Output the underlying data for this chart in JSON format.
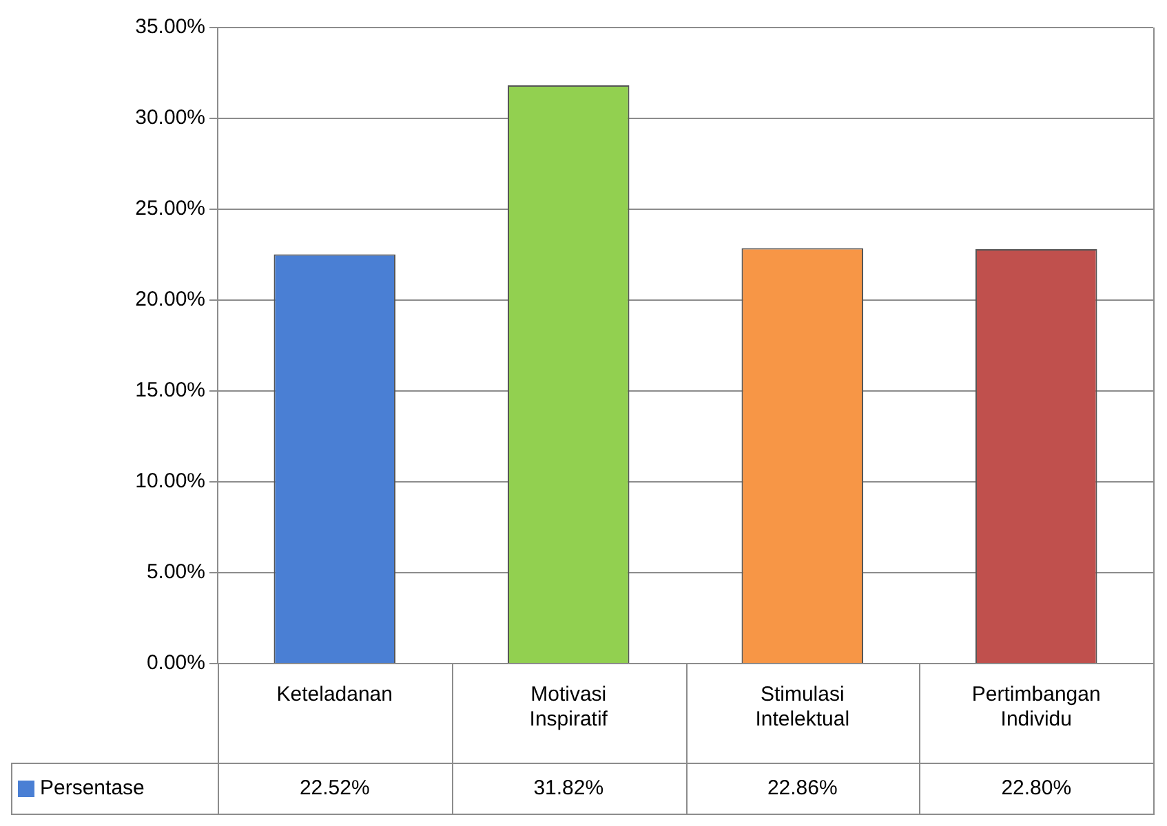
{
  "chart_data": {
    "type": "bar",
    "categories": [
      "Keteladanan",
      "Motivasi Inspiratif",
      "Stimulasi Intelektual",
      "Pertimbangan Individu"
    ],
    "series": [
      {
        "name": "Persentase",
        "color": "#4a7fd4",
        "colors": [
          "#4a7fd4",
          "#92d050",
          "#f79646",
          "#c0504d"
        ],
        "values": [
          22.52,
          31.82,
          22.86,
          22.8
        ],
        "value_labels": [
          "22.52%",
          "31.82%",
          "22.86%",
          "22.80%"
        ]
      }
    ],
    "ylim": [
      0,
      35
    ],
    "yticks": [
      {
        "value": 0,
        "label": "0.00%"
      },
      {
        "value": 5,
        "label": "5.00%"
      },
      {
        "value": 10,
        "label": "10.00%"
      },
      {
        "value": 15,
        "label": "15.00%"
      },
      {
        "value": 20,
        "label": "20.00%"
      },
      {
        "value": 25,
        "label": "25.00%"
      },
      {
        "value": 30,
        "label": "30.00%"
      },
      {
        "value": 35,
        "label": "35.00%"
      }
    ],
    "grid": "y",
    "legend": "bottom left"
  }
}
